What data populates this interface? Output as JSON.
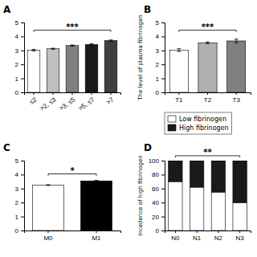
{
  "chart_data": [
    {
      "type": "bar",
      "title": "A",
      "categories": [
        "≤2",
        ">2, ≤3",
        ">3, ≤5",
        ">5, ≤7",
        ">7"
      ],
      "values": [
        3.02,
        3.12,
        3.35,
        3.42,
        3.7
      ],
      "errors": [
        0.06,
        0.04,
        0.04,
        0.06,
        0.05
      ],
      "colors": [
        "#ffffff",
        "#c0c0c0",
        "#808080",
        "#1a1a1a",
        "#404040"
      ],
      "ylim": [
        0,
        5
      ],
      "yticks": [
        0,
        1,
        2,
        3,
        4,
        5
      ],
      "annotations": [
        {
          "text": "***",
          "y": 4.45,
          "x": [
            "≤2",
            ">7"
          ]
        }
      ]
    },
    {
      "type": "bar",
      "title": "B",
      "categories": [
        "T1",
        "T2",
        "T3"
      ],
      "values": [
        3.02,
        3.55,
        3.68
      ],
      "errors": [
        0.1,
        0.06,
        0.13
      ],
      "colors": [
        "#ffffff",
        "#b0b0b0",
        "#808080"
      ],
      "y_label": "The level of plasma fibrinogen",
      "ylim": [
        0,
        5
      ],
      "yticks": [
        0,
        1,
        2,
        3,
        4,
        5
      ],
      "annotations": [
        {
          "text": "***",
          "y": 4.45,
          "x": [
            "T1",
            "T3"
          ]
        }
      ]
    },
    {
      "type": "bar",
      "title": "C",
      "categories": [
        "M0",
        "M1"
      ],
      "values": [
        3.25,
        3.55
      ],
      "errors": [
        0.03,
        0.04
      ],
      "colors": [
        "#ffffff",
        "#000000"
      ],
      "ylim": [
        0,
        5
      ],
      "yticks": [
        0,
        1,
        2,
        3,
        4,
        5
      ],
      "annotations": [
        {
          "text": "*",
          "y": 4.05,
          "x": [
            "M0",
            "M1"
          ]
        }
      ]
    },
    {
      "type": "bar",
      "title": "D",
      "stacked": true,
      "legend": "top",
      "categories": [
        "N0",
        "N1",
        "N2",
        "N3"
      ],
      "series": [
        {
          "name": "Low fibrinogen",
          "color": "#ffffff",
          "values": [
            70,
            62,
            55,
            40
          ]
        },
        {
          "name": "High fibrinogen",
          "color": "#1a1a1a",
          "values": [
            30,
            38,
            45,
            60
          ]
        }
      ],
      "y_label": "Incedence of high fibrinogen",
      "ylim": [
        0,
        100
      ],
      "yticks": [
        0,
        20,
        40,
        60,
        80,
        100
      ],
      "annotations": [
        {
          "text": "**",
          "y": 107,
          "x": [
            "N0",
            "N3"
          ]
        }
      ]
    }
  ]
}
